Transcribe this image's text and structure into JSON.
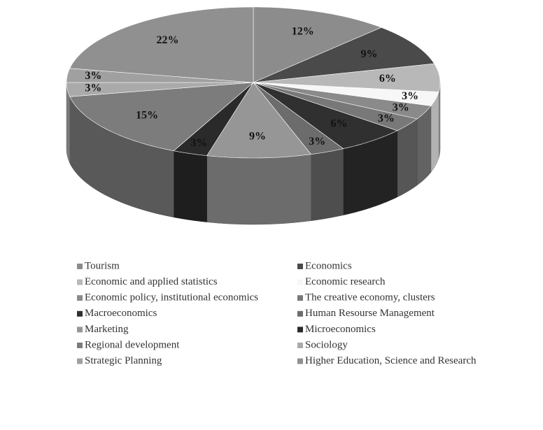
{
  "chart_data": {
    "type": "pie3d",
    "categories": [
      "Tourism",
      "Economics",
      "Economic and applied statistics",
      "Economic research",
      "Economic policy, institutional economics",
      "The creative economy, clusters",
      "Macroeconomics",
      "Human Resourse Management",
      "Marketing",
      "Microeconomics",
      "Regional development",
      "Sociology",
      "Strategic Planning",
      "Higher Education, Science and Research"
    ],
    "values": [
      12,
      9,
      6,
      3,
      3,
      3,
      6,
      3,
      9,
      3,
      15,
      3,
      3,
      22
    ],
    "value_labels": [
      "12%",
      "9%",
      "6%",
      "3%",
      "3%",
      "3%",
      "6%",
      "3%",
      "9%",
      "3%",
      "15%",
      "3%",
      "3%",
      "22%"
    ],
    "colors": [
      "#8c8c8c",
      "#4a4a4a",
      "#b8b8b8",
      "#f7f7f7",
      "#8a8a8a",
      "#787878",
      "#303030",
      "#6c6c6c",
      "#969696",
      "#2a2a2a",
      "#7c7c7c",
      "#aaaaaa",
      "#a0a0a0",
      "#909090"
    ],
    "legend": "bottom"
  }
}
